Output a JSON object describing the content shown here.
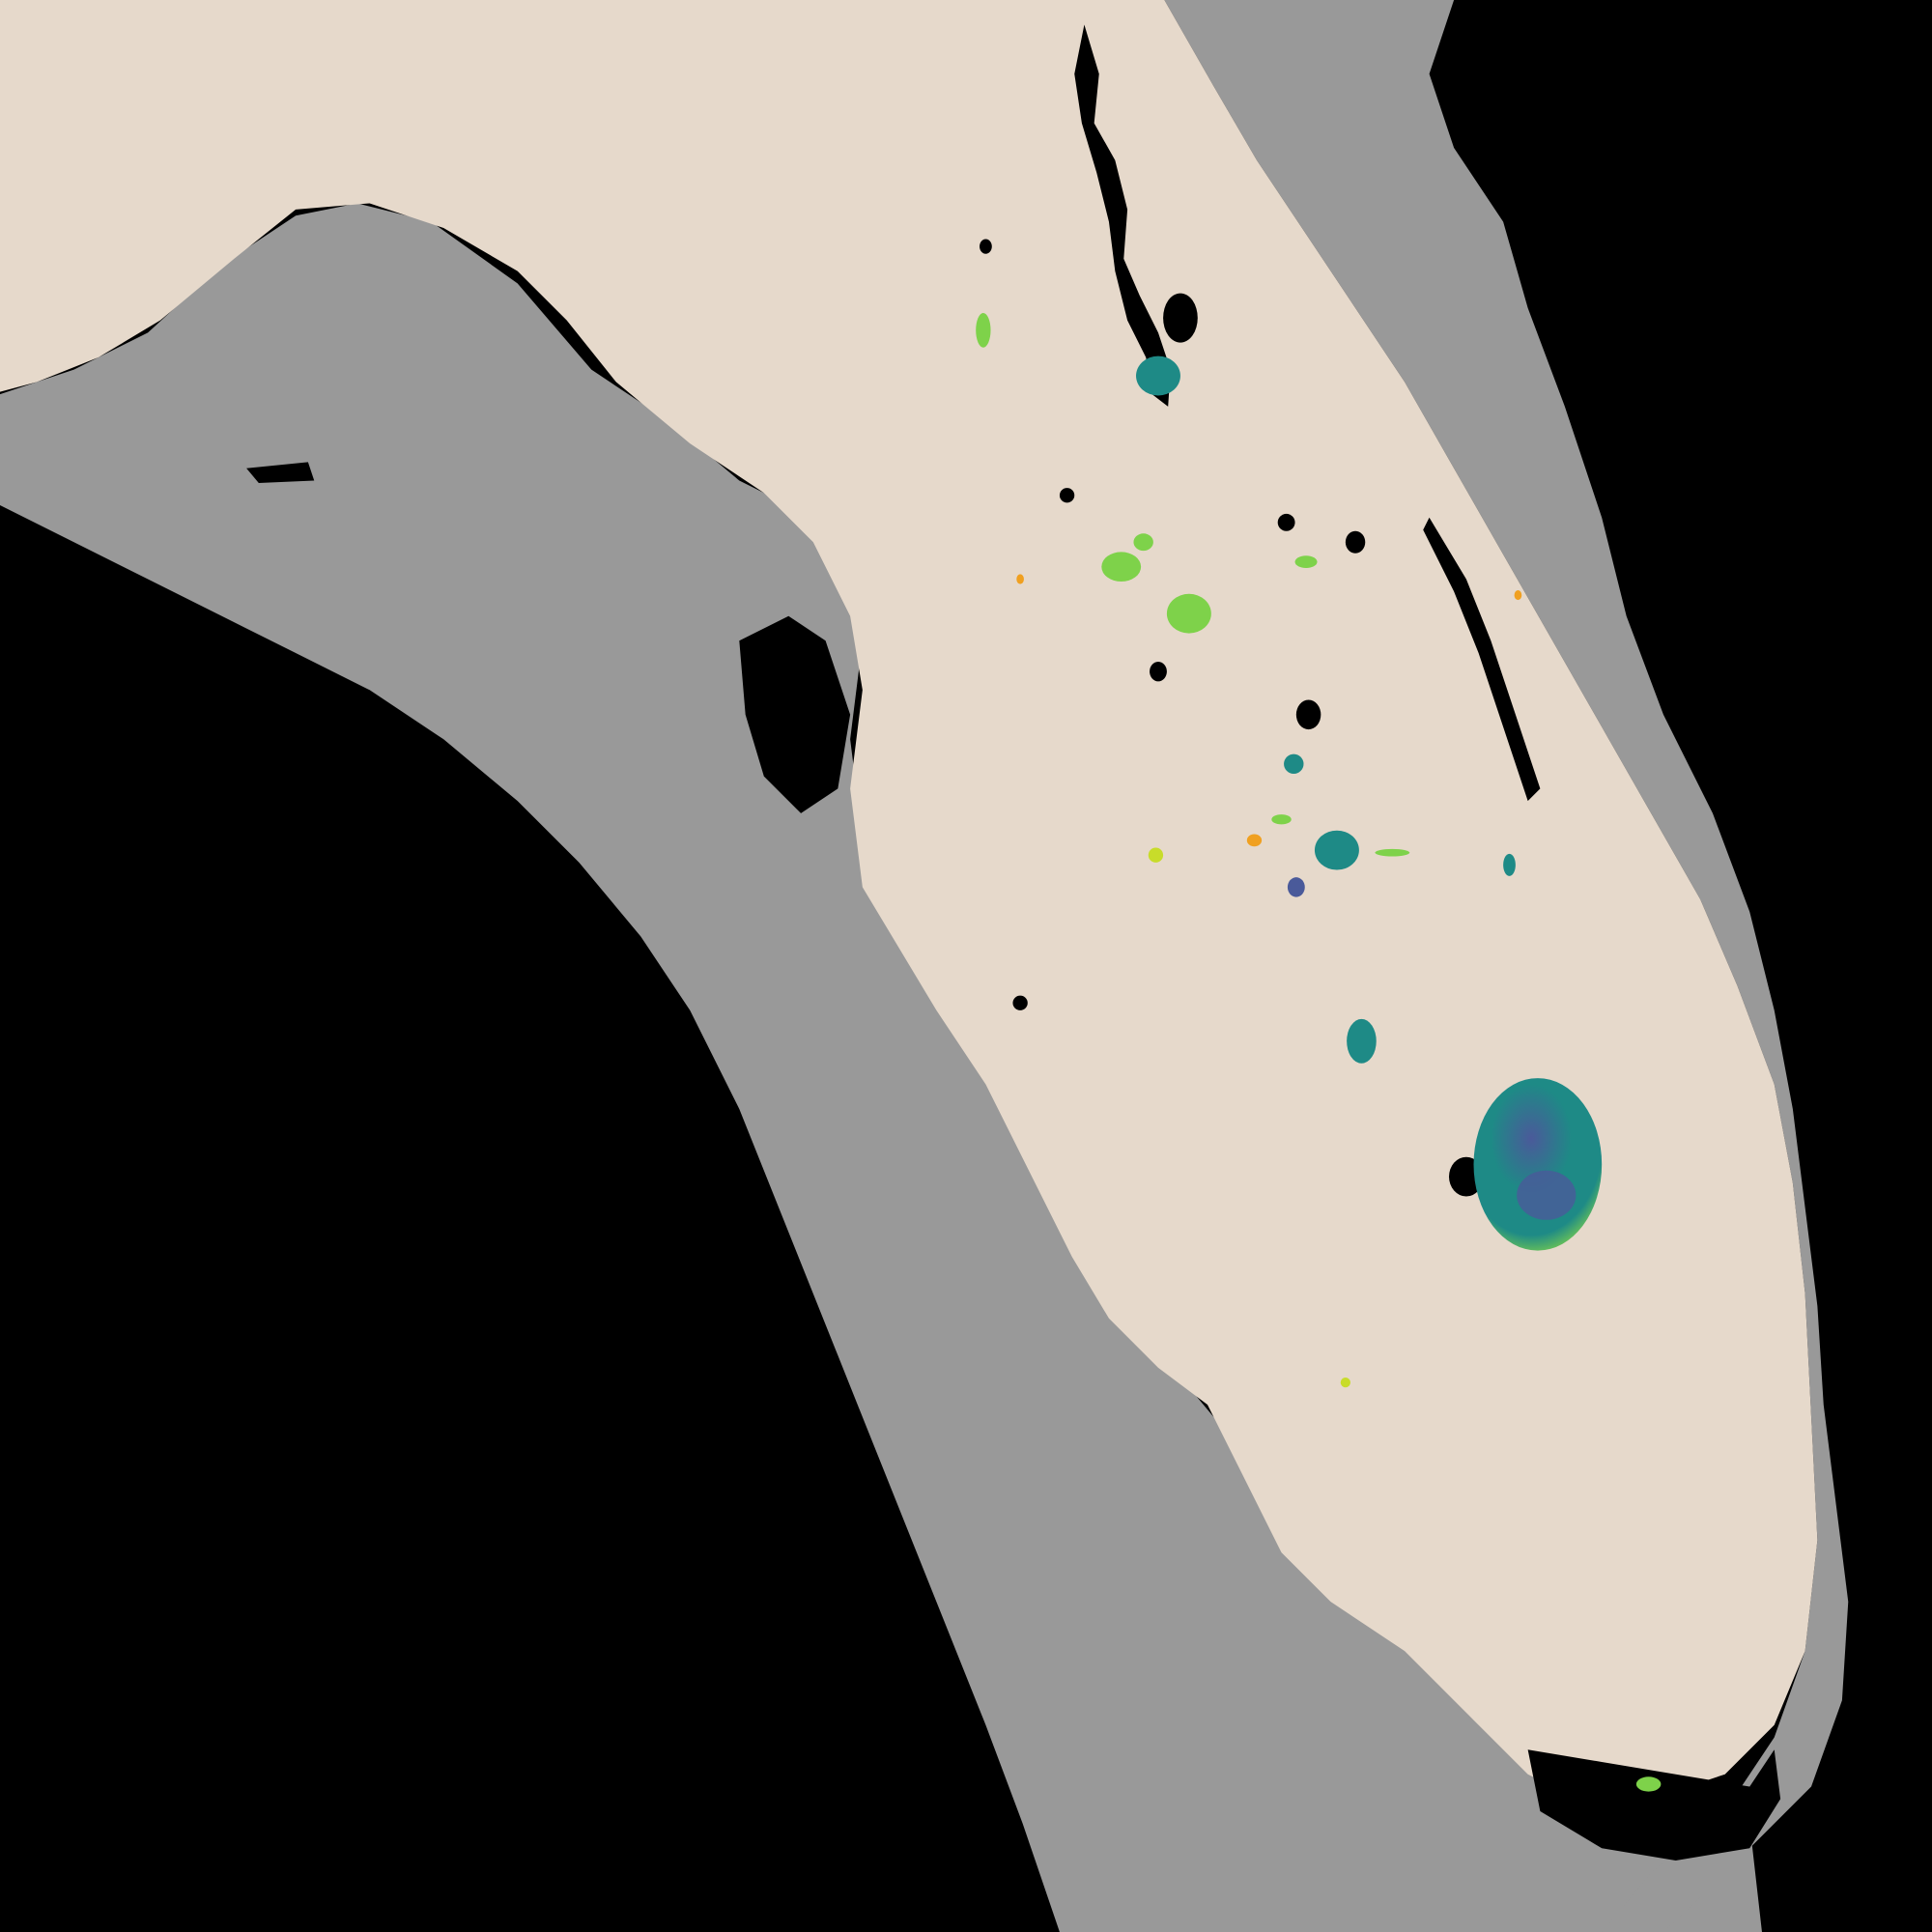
{
  "map": {
    "legend": [],
    "colors": {
      "no_data": "#000000",
      "shelf_water": "#999999",
      "land": "#e6d9cb",
      "inland_water_nodata": "#000000",
      "lake_low": "#4a5a9a",
      "lake_mid": "#1e8a86",
      "lake_high": "#7ed24a",
      "lake_very_high": "#c8dc2a",
      "lake_extreme": "#f0a020"
    },
    "layers": [
      {
        "name": "ocean-no-data",
        "color_key": "no_data"
      },
      {
        "name": "continental-shelf",
        "color_key": "shelf_water"
      },
      {
        "name": "florida-land",
        "color_key": "land"
      },
      {
        "name": "inland-water-no-data",
        "color_key": "inland_water_nodata"
      },
      {
        "name": "lake-water-quality",
        "color_key": "lake_mid"
      }
    ]
  }
}
